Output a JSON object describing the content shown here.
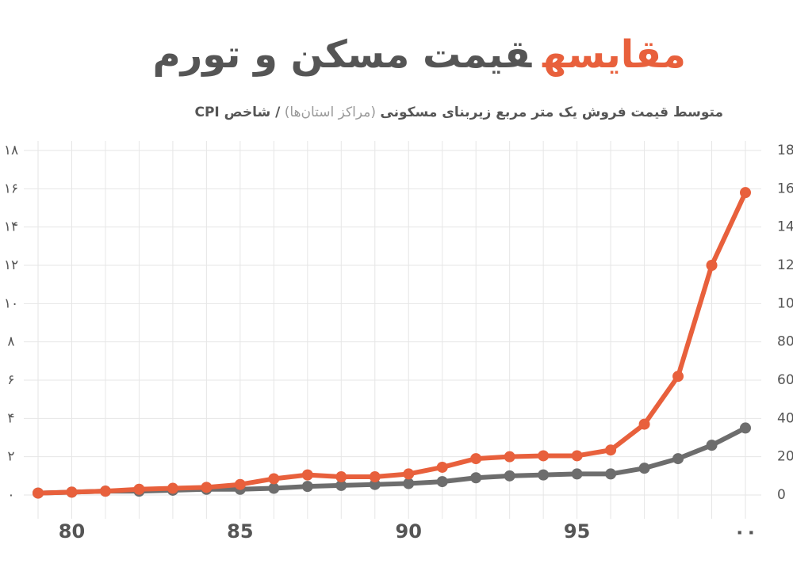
{
  "chart_data": {
    "type": "line",
    "title_highlight": "مقایسه",
    "title": "قیمت مسکن و تورم",
    "subtitle": [
      "متوسط قیمت فروش یک متر مربع زیربنای مسکونی",
      " (مراکز استان‌ها) ",
      "/ شاخص CPI"
    ],
    "x": [
      79,
      80,
      81,
      82,
      83,
      84,
      85,
      86,
      87,
      88,
      89,
      90,
      91,
      92,
      93,
      94,
      95,
      96,
      97,
      98,
      99,
      100
    ],
    "xlim": [
      79,
      100
    ],
    "xticks": [
      80,
      85,
      90,
      95,
      {
        "value": 100,
        "label": "۰۰"
      }
    ],
    "ylim": [
      0,
      18
    ],
    "yticks": [
      {
        "value": 0,
        "label": "۰"
      },
      {
        "value": 2,
        "label": "۲"
      },
      {
        "value": 4,
        "label": "۴"
      },
      {
        "value": 6,
        "label": "۶"
      },
      {
        "value": 8,
        "label": "۸"
      },
      {
        "value": 10,
        "label": "۱۰"
      },
      {
        "value": 12,
        "label": "۱۲"
      },
      {
        "value": 14,
        "label": "۱۴"
      },
      {
        "value": 16,
        "label": "۱۶"
      },
      {
        "value": 18,
        "label": "۱۸"
      }
    ],
    "y2lim": [
      0,
      180
    ],
    "y2ticks": [
      0,
      20,
      40,
      60,
      80,
      100,
      120,
      140,
      160,
      180
    ],
    "grid": true,
    "series": [
      {
        "name": "قیمت مسکن",
        "color": "#e8603c",
        "values": [
          0.1,
          0.15,
          0.2,
          0.3,
          0.35,
          0.4,
          0.55,
          0.85,
          1.05,
          0.95,
          0.95,
          1.1,
          1.45,
          1.9,
          2.0,
          2.05,
          2.05,
          2.35,
          3.7,
          6.2,
          12.0,
          15.8
        ]
      },
      {
        "name": "CPI",
        "color": "#6d6d6d",
        "axis": "y2",
        "values": [
          1,
          1.5,
          2,
          2,
          2.5,
          3,
          3,
          3.5,
          4.5,
          5,
          5.5,
          6,
          7,
          9,
          10,
          10.5,
          11,
          11,
          14,
          19,
          26,
          35
        ]
      }
    ]
  }
}
